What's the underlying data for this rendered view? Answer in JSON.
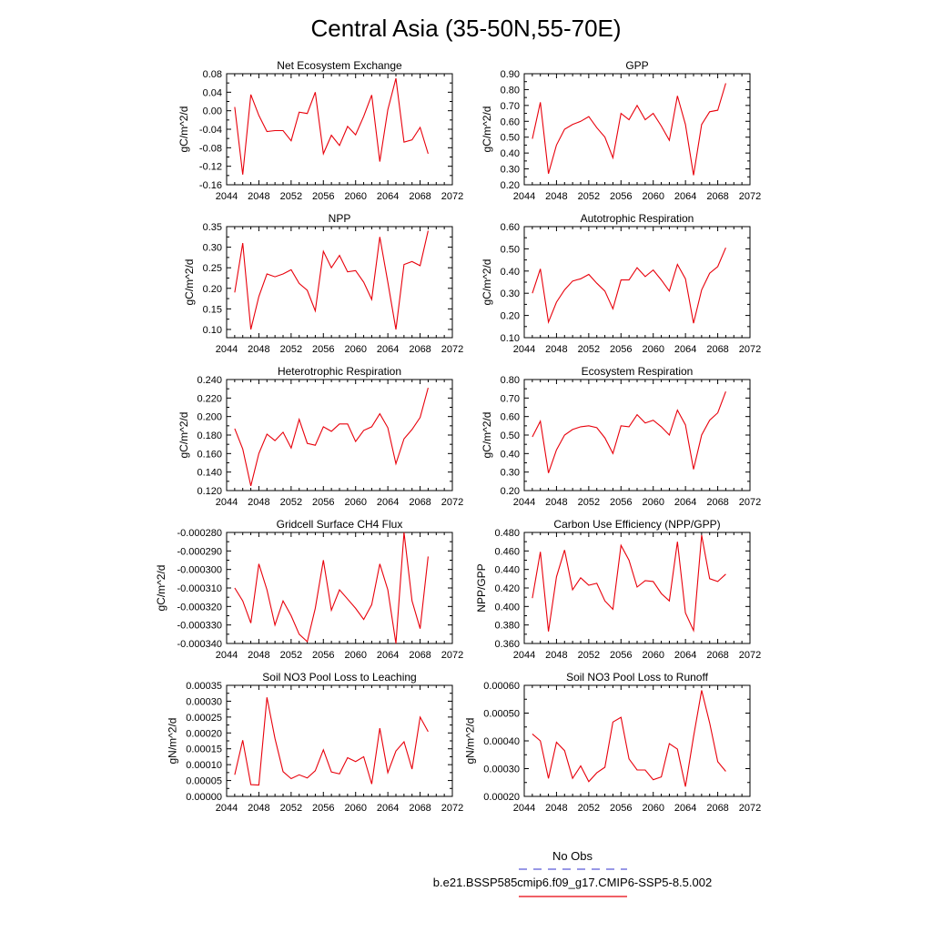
{
  "figure": {
    "title": "Central Asia (35-50N,55-70E)",
    "legend": [
      {
        "label": "No Obs",
        "color": "#5b5bd6",
        "style": "dashed"
      },
      {
        "label": "b.e21.BSSP585cmip6.f09_g17.CMIP6-SSP5-8.5.002",
        "color": "#e8000b",
        "style": "solid"
      }
    ],
    "line_color": "#e8000b"
  },
  "chart_data": [
    {
      "type": "line",
      "title": "Net Ecosystem Exchange",
      "ylabel": "gC/m^2/d",
      "xlim": [
        2044,
        2072
      ],
      "xticks": [
        "2044",
        "2048",
        "2052",
        "2056",
        "2060",
        "2064",
        "2068",
        "2072"
      ],
      "ylim": [
        -0.16,
        0.08
      ],
      "yticks": [
        "-0.16",
        "-0.12",
        "-0.08",
        "-0.04",
        "0.00",
        "0.04",
        "0.08"
      ],
      "x": [
        2045,
        2046,
        2047,
        2048,
        2049,
        2050,
        2051,
        2052,
        2053,
        2054,
        2055,
        2056,
        2057,
        2058,
        2059,
        2060,
        2061,
        2062,
        2063,
        2064,
        2065,
        2066,
        2067,
        2068,
        2069
      ],
      "series": [
        {
          "values": [
            0.008,
            -0.138,
            0.035,
            -0.01,
            -0.045,
            -0.043,
            -0.043,
            -0.065,
            -0.003,
            -0.006,
            0.04,
            -0.093,
            -0.053,
            -0.075,
            -0.034,
            -0.052,
            -0.012,
            0.034,
            -0.11,
            0.002,
            0.07,
            -0.068,
            -0.063,
            -0.036,
            -0.093
          ]
        }
      ]
    },
    {
      "type": "line",
      "title": "GPP",
      "ylabel": "gC/m^2/d",
      "xlim": [
        2044,
        2072
      ],
      "xticks": [
        "2044",
        "2048",
        "2052",
        "2056",
        "2060",
        "2064",
        "2068",
        "2072"
      ],
      "ylim": [
        0.2,
        0.9
      ],
      "yticks": [
        "0.20",
        "0.30",
        "0.40",
        "0.50",
        "0.60",
        "0.70",
        "0.80",
        "0.90"
      ],
      "x": [
        2045,
        2046,
        2047,
        2048,
        2049,
        2050,
        2051,
        2052,
        2053,
        2054,
        2055,
        2056,
        2057,
        2058,
        2059,
        2060,
        2061,
        2062,
        2063,
        2064,
        2065,
        2066,
        2067,
        2068,
        2069
      ],
      "series": [
        {
          "values": [
            0.49,
            0.72,
            0.27,
            0.45,
            0.55,
            0.58,
            0.6,
            0.63,
            0.56,
            0.5,
            0.37,
            0.65,
            0.61,
            0.7,
            0.61,
            0.65,
            0.57,
            0.48,
            0.76,
            0.58,
            0.26,
            0.58,
            0.66,
            0.67,
            0.84
          ]
        }
      ]
    },
    {
      "type": "line",
      "title": "NPP",
      "ylabel": "gC/m^2/d",
      "xlim": [
        2044,
        2072
      ],
      "xticks": [
        "2044",
        "2048",
        "2052",
        "2056",
        "2060",
        "2064",
        "2068",
        "2072"
      ],
      "ylim": [
        0.08,
        0.35
      ],
      "yticks": [
        "0.10",
        "0.15",
        "0.20",
        "0.25",
        "0.30",
        "0.35"
      ],
      "x": [
        2045,
        2046,
        2047,
        2048,
        2049,
        2050,
        2051,
        2052,
        2053,
        2054,
        2055,
        2056,
        2057,
        2058,
        2059,
        2060,
        2061,
        2062,
        2063,
        2064,
        2065,
        2066,
        2067,
        2068,
        2069
      ],
      "series": [
        {
          "values": [
            0.19,
            0.31,
            0.1,
            0.18,
            0.235,
            0.228,
            0.235,
            0.245,
            0.212,
            0.195,
            0.145,
            0.29,
            0.25,
            0.28,
            0.24,
            0.243,
            0.215,
            0.173,
            0.325,
            0.215,
            0.1,
            0.258,
            0.265,
            0.255,
            0.34
          ]
        }
      ]
    },
    {
      "type": "line",
      "title": "Autotrophic Respiration",
      "ylabel": "gC/m^2/d",
      "xlim": [
        2044,
        2072
      ],
      "xticks": [
        "2044",
        "2048",
        "2052",
        "2056",
        "2060",
        "2064",
        "2068",
        "2072"
      ],
      "ylim": [
        0.1,
        0.6
      ],
      "yticks": [
        "0.10",
        "0.20",
        "0.30",
        "0.40",
        "0.50",
        "0.60"
      ],
      "x": [
        2045,
        2046,
        2047,
        2048,
        2049,
        2050,
        2051,
        2052,
        2053,
        2054,
        2055,
        2056,
        2057,
        2058,
        2059,
        2060,
        2061,
        2062,
        2063,
        2064,
        2065,
        2066,
        2067,
        2068,
        2069
      ],
      "series": [
        {
          "values": [
            0.3,
            0.41,
            0.17,
            0.26,
            0.315,
            0.355,
            0.365,
            0.385,
            0.345,
            0.31,
            0.23,
            0.36,
            0.36,
            0.415,
            0.375,
            0.405,
            0.36,
            0.31,
            0.43,
            0.365,
            0.165,
            0.315,
            0.39,
            0.42,
            0.505
          ]
        }
      ]
    },
    {
      "type": "line",
      "title": "Heterotrophic Respiration",
      "ylabel": "gC/m^2/d",
      "xlim": [
        2044,
        2072
      ],
      "xticks": [
        "2044",
        "2048",
        "2052",
        "2056",
        "2060",
        "2064",
        "2068",
        "2072"
      ],
      "ylim": [
        0.12,
        0.24
      ],
      "yticks": [
        "0.120",
        "0.140",
        "0.160",
        "0.180",
        "0.200",
        "0.220",
        "0.240"
      ],
      "x": [
        2045,
        2046,
        2047,
        2048,
        2049,
        2050,
        2051,
        2052,
        2053,
        2054,
        2055,
        2056,
        2057,
        2058,
        2059,
        2060,
        2061,
        2062,
        2063,
        2064,
        2065,
        2066,
        2067,
        2068,
        2069
      ],
      "series": [
        {
          "values": [
            0.187,
            0.165,
            0.125,
            0.16,
            0.181,
            0.174,
            0.183,
            0.166,
            0.197,
            0.171,
            0.169,
            0.189,
            0.184,
            0.192,
            0.192,
            0.173,
            0.185,
            0.189,
            0.203,
            0.188,
            0.149,
            0.176,
            0.186,
            0.199,
            0.231
          ]
        }
      ]
    },
    {
      "type": "line",
      "title": "Ecosystem Respiration",
      "ylabel": "gC/m^2/d",
      "xlim": [
        2044,
        2072
      ],
      "xticks": [
        "2044",
        "2048",
        "2052",
        "2056",
        "2060",
        "2064",
        "2068",
        "2072"
      ],
      "ylim": [
        0.2,
        0.8
      ],
      "yticks": [
        "0.20",
        "0.30",
        "0.40",
        "0.50",
        "0.60",
        "0.70",
        "0.80"
      ],
      "x": [
        2045,
        2046,
        2047,
        2048,
        2049,
        2050,
        2051,
        2052,
        2053,
        2054,
        2055,
        2056,
        2057,
        2058,
        2059,
        2060,
        2061,
        2062,
        2063,
        2064,
        2065,
        2066,
        2067,
        2068,
        2069
      ],
      "series": [
        {
          "values": [
            0.49,
            0.575,
            0.295,
            0.42,
            0.5,
            0.53,
            0.545,
            0.55,
            0.54,
            0.485,
            0.4,
            0.55,
            0.545,
            0.61,
            0.565,
            0.58,
            0.545,
            0.5,
            0.635,
            0.555,
            0.315,
            0.5,
            0.58,
            0.62,
            0.735
          ]
        }
      ]
    },
    {
      "type": "line",
      "title": "Gridcell Surface CH4 Flux",
      "ylabel": "gC/m^2/d",
      "xlim": [
        2044,
        2072
      ],
      "xticks": [
        "2044",
        "2048",
        "2052",
        "2056",
        "2060",
        "2064",
        "2068",
        "2072"
      ],
      "ylim": [
        -0.00034,
        -0.00028
      ],
      "yticks": [
        "-0.000340",
        "-0.000330",
        "-0.000320",
        "-0.000310",
        "-0.000300",
        "-0.000290",
        "-0.000280"
      ],
      "x": [
        2045,
        2046,
        2047,
        2048,
        2049,
        2050,
        2051,
        2052,
        2053,
        2054,
        2055,
        2056,
        2057,
        2058,
        2059,
        2060,
        2061,
        2062,
        2063,
        2064,
        2065,
        2066,
        2067,
        2068,
        2069
      ],
      "series": [
        {
          "values": [
            -0.00031,
            -0.000317,
            -0.000329,
            -0.000297,
            -0.000311,
            -0.00033,
            -0.000317,
            -0.000325,
            -0.000335,
            -0.000339,
            -0.000321,
            -0.000295,
            -0.000322,
            -0.000311,
            -0.000316,
            -0.000321,
            -0.000327,
            -0.000319,
            -0.000297,
            -0.000311,
            -0.00034,
            -0.00028,
            -0.000317,
            -0.000332,
            -0.000293
          ]
        }
      ]
    },
    {
      "type": "line",
      "title": "Carbon Use Efficiency (NPP/GPP)",
      "ylabel": "NPP/GPP",
      "xlim": [
        2044,
        2072
      ],
      "xticks": [
        "2044",
        "2048",
        "2052",
        "2056",
        "2060",
        "2064",
        "2068",
        "2072"
      ],
      "ylim": [
        0.36,
        0.48
      ],
      "yticks": [
        "0.360",
        "0.380",
        "0.400",
        "0.420",
        "0.440",
        "0.460",
        "0.480"
      ],
      "x": [
        2045,
        2046,
        2047,
        2048,
        2049,
        2050,
        2051,
        2052,
        2053,
        2054,
        2055,
        2056,
        2057,
        2058,
        2059,
        2060,
        2061,
        2062,
        2063,
        2064,
        2065,
        2066,
        2067,
        2068,
        2069
      ],
      "series": [
        {
          "values": [
            0.409,
            0.459,
            0.373,
            0.432,
            0.461,
            0.418,
            0.431,
            0.423,
            0.425,
            0.406,
            0.397,
            0.466,
            0.45,
            0.421,
            0.428,
            0.427,
            0.414,
            0.406,
            0.47,
            0.393,
            0.374,
            0.477,
            0.43,
            0.427,
            0.435
          ]
        }
      ]
    },
    {
      "type": "line",
      "title": "Soil NO3 Pool Loss to Leaching",
      "ylabel": "gN/m^2/d",
      "xlim": [
        2044,
        2072
      ],
      "xticks": [
        "2044",
        "2048",
        "2052",
        "2056",
        "2060",
        "2064",
        "2068",
        "2072"
      ],
      "ylim": [
        0.0,
        0.00035
      ],
      "yticks": [
        "0.00000",
        "0.00005",
        "0.00010",
        "0.00015",
        "0.00020",
        "0.00025",
        "0.00030",
        "0.00035"
      ],
      "x": [
        2045,
        2046,
        2047,
        2048,
        2049,
        2050,
        2051,
        2052,
        2053,
        2054,
        2055,
        2056,
        2057,
        2058,
        2059,
        2060,
        2061,
        2062,
        2063,
        2064,
        2065,
        2066,
        2067,
        2068,
        2069
      ],
      "series": [
        {
          "values": [
            6.8e-05,
            0.000177,
            3.7e-05,
            3.6e-05,
            0.000312,
            0.000183,
            7.8e-05,
            5.6e-05,
            6.8e-05,
            5.8e-05,
            8.1e-05,
            0.000147,
            7.7e-05,
            7.1e-05,
            0.000122,
            0.00011,
            0.000125,
            3.9e-05,
            0.000215,
            7.5e-05,
            0.000143,
            0.000172,
            8.6e-05,
            0.00025,
            0.000204
          ]
        }
      ]
    },
    {
      "type": "line",
      "title": "Soil NO3 Pool Loss to Runoff",
      "ylabel": "gN/m^2/d",
      "xlim": [
        2044,
        2072
      ],
      "xticks": [
        "2044",
        "2048",
        "2052",
        "2056",
        "2060",
        "2064",
        "2068",
        "2072"
      ],
      "ylim": [
        0.0002,
        0.0006
      ],
      "yticks": [
        "0.00020",
        "0.00030",
        "0.00040",
        "0.00050",
        "0.00060"
      ],
      "x": [
        2045,
        2046,
        2047,
        2048,
        2049,
        2050,
        2051,
        2052,
        2053,
        2054,
        2055,
        2056,
        2057,
        2058,
        2059,
        2060,
        2061,
        2062,
        2063,
        2064,
        2065,
        2066,
        2067,
        2068,
        2069
      ],
      "series": [
        {
          "values": [
            0.000425,
            0.0004,
            0.000265,
            0.000395,
            0.000365,
            0.000265,
            0.00031,
            0.000253,
            0.000285,
            0.000305,
            0.000468,
            0.000485,
            0.000335,
            0.000295,
            0.000295,
            0.00026,
            0.00027,
            0.00039,
            0.00037,
            0.000235,
            0.000415,
            0.000582,
            0.000465,
            0.000325,
            0.00029
          ]
        }
      ]
    }
  ]
}
